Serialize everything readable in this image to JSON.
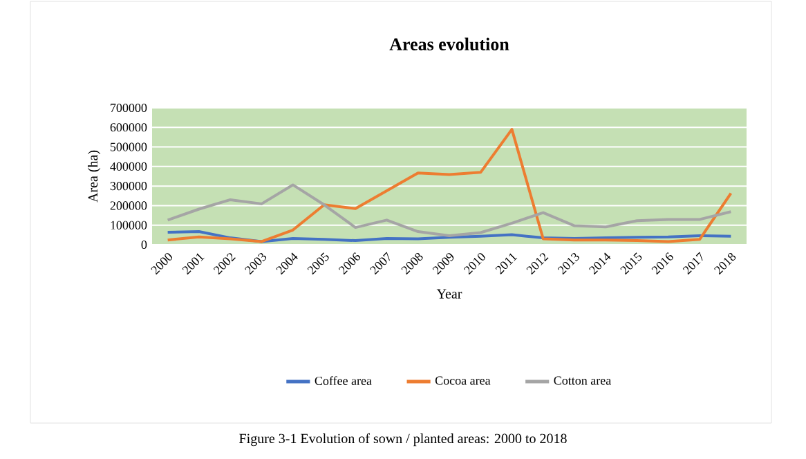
{
  "chart_data": {
    "type": "line",
    "title": "Areas  evolution",
    "xlabel": "Year",
    "ylabel": "Area (ha)",
    "categories": [
      "2000",
      "2001",
      "2002",
      "2003",
      "2004",
      "2005",
      "2006",
      "2007",
      "2008",
      "2009",
      "2010",
      "2011",
      "2012",
      "2013",
      "2014",
      "2015",
      "2016",
      "2017",
      "2018"
    ],
    "series": [
      {
        "name": "Coffee area",
        "color": "#4472c4",
        "values": [
          64000,
          67000,
          35000,
          16000,
          32000,
          27000,
          21000,
          32000,
          30000,
          38000,
          43000,
          51000,
          35000,
          32000,
          35000,
          38000,
          40000,
          46000,
          43000
        ]
      },
      {
        "name": "Cocoa area",
        "color": "#ed7d31",
        "values": [
          24000,
          40000,
          30000,
          16000,
          75000,
          204000,
          185000,
          276000,
          367000,
          359000,
          370000,
          590000,
          30000,
          24000,
          24000,
          21000,
          16000,
          27000,
          263000
        ]
      },
      {
        "name": "Cotton area",
        "color": "#a5a5a5",
        "values": [
          126000,
          182000,
          230000,
          209000,
          306000,
          204000,
          88000,
          126000,
          67000,
          46000,
          62000,
          110000,
          164000,
          97000,
          91000,
          123000,
          129000,
          129000,
          169000
        ]
      }
    ],
    "ylim": [
      0,
      700000
    ],
    "yticks": [
      0,
      100000,
      200000,
      300000,
      400000,
      500000,
      600000,
      700000
    ],
    "grid": "y",
    "legend": "bottom",
    "marker": "none",
    "line_style": "solid",
    "annotations": [
      "Figure 3-1 Evolution of sown / planted areas: 2000 to 2018"
    ]
  }
}
